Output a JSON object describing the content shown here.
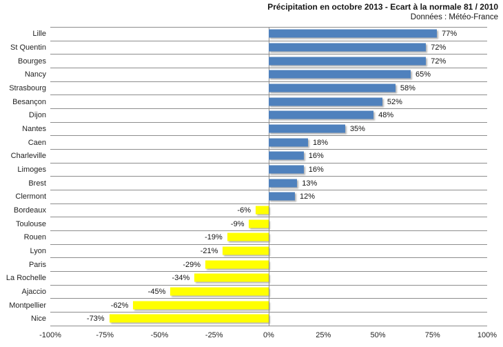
{
  "header": {
    "title": "Précipitation en octobre 2013 - Ecart à la normale 81 / 2010",
    "subtitle": "Données : Météo-France"
  },
  "chart_data": {
    "type": "bar",
    "orientation": "horizontal",
    "title": "Précipitation en octobre 2013 - Ecart à la normale 81 / 2010",
    "subtitle": "Données : Météo-France",
    "categories": [
      "Lille",
      "St Quentin",
      "Bourges",
      "Nancy",
      "Strasbourg",
      "Besançon",
      "Dijon",
      "Nantes",
      "Caen",
      "Charleville",
      "Limoges",
      "Brest",
      "Clermont",
      "Bordeaux",
      "Toulouse",
      "Rouen",
      "Lyon",
      "Paris",
      "La Rochelle",
      "Ajaccio",
      "Montpellier",
      "Nice"
    ],
    "values": [
      77,
      72,
      72,
      65,
      58,
      52,
      48,
      35,
      18,
      16,
      16,
      13,
      12,
      -6,
      -9,
      -19,
      -21,
      -29,
      -34,
      -45,
      -62,
      -73
    ],
    "data_labels": [
      "77%",
      "72%",
      "72%",
      "65%",
      "58%",
      "52%",
      "48%",
      "35%",
      "18%",
      "16%",
      "16%",
      "13%",
      "12%",
      "-6%",
      "-9%",
      "-19%",
      "-21%",
      "-29%",
      "-34%",
      "-45%",
      "-62%",
      "-73%"
    ],
    "xlabel": "",
    "ylabel": "",
    "xlim": [
      -100,
      100
    ],
    "x_ticks": [
      "-100%",
      "-75%",
      "-50%",
      "-25%",
      "0%",
      "25%",
      "50%",
      "75%",
      "100%"
    ],
    "x_tick_values": [
      -100,
      -75,
      -50,
      -25,
      0,
      25,
      50,
      75,
      100
    ],
    "grid": "horizontal-category-separators",
    "legend_position": "none",
    "colors": {
      "positive_bar": "#4f81bd",
      "negative_bar": "#ffff00",
      "gridline": "#8c8c8c",
      "text": "#1f1f1f",
      "background": "#ffffff"
    }
  }
}
